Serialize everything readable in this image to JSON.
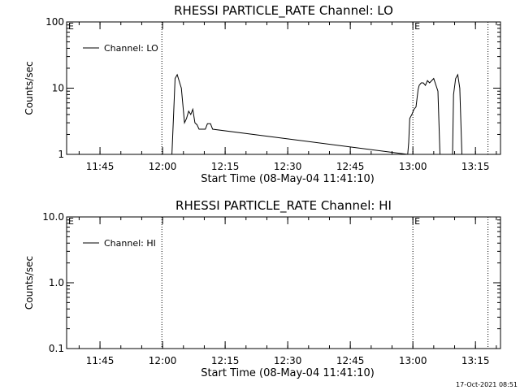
{
  "chart_data": [
    {
      "type": "line",
      "title": "RHESSI PARTICLE_RATE Channel: LO",
      "xlabel": "Start Time (08-May-04 11:41:10)",
      "ylabel": "Counts/sec",
      "yscale": "log",
      "ylim": [
        1,
        100
      ],
      "ytick_labels": [
        "1",
        "10",
        "100"
      ],
      "xlim": [
        "11:37",
        "13:21"
      ],
      "xtick_labels": [
        "11:45",
        "12:00",
        "12:15",
        "12:30",
        "12:45",
        "13:00",
        "13:15"
      ],
      "grid": false,
      "legend_position": "top-left",
      "series": [
        {
          "name": "Channel: LO",
          "x": [
            "12:00:00",
            "12:02:15",
            "12:03:00",
            "12:03:30",
            "12:04:30",
            "12:05:15",
            "12:05:45",
            "12:06:15",
            "12:06:45",
            "12:07:15",
            "12:07:45",
            "12:08:15",
            "12:08:45",
            "12:09:15",
            "12:09:45",
            "12:10:15",
            "12:10:45",
            "12:11:30",
            "12:12:00",
            "12:58:45",
            "12:59:00",
            "12:59:15",
            "12:59:45",
            "13:00:15",
            "13:00:45",
            "13:01:15",
            "13:01:30",
            "13:02:00",
            "13:02:30",
            "13:03:00",
            "13:03:30",
            "13:04:00",
            "13:05:00",
            "13:06:00",
            "13:06:30",
            "13:09:30",
            "13:09:45",
            "13:10:15",
            "13:10:45",
            "13:11:15",
            "13:11:45",
            "13:12:45"
          ],
          "y": [
            1,
            1,
            14,
            16,
            10,
            3,
            3.5,
            4.5,
            4,
            4.8,
            3,
            2.8,
            2.4,
            2.4,
            2.4,
            2.4,
            2.9,
            2.9,
            2.4,
            1,
            1.5,
            3.5,
            4,
            4.8,
            5.2,
            9.5,
            11,
            12,
            12,
            11,
            13,
            12,
            14,
            9,
            1,
            1,
            8,
            14,
            16,
            10,
            1,
            1
          ]
        }
      ],
      "annotations": [
        {
          "text": "E",
          "x": "11:37"
        },
        {
          "text": "E",
          "x": "13:00"
        }
      ]
    },
    {
      "type": "line",
      "title": "RHESSI PARTICLE_RATE Channel: HI",
      "xlabel": "Start Time (08-May-04 11:41:10)",
      "ylabel": "Counts/sec",
      "yscale": "log",
      "ylim": [
        0.1,
        10
      ],
      "ytick_labels": [
        "0.1",
        "1.0",
        "10.0"
      ],
      "xlim": [
        "11:37",
        "13:21"
      ],
      "xtick_labels": [
        "11:45",
        "12:00",
        "12:15",
        "12:30",
        "12:45",
        "13:00",
        "13:15"
      ],
      "grid": false,
      "legend_position": "top-left",
      "series": [
        {
          "name": "Channel: HI",
          "x": [],
          "y": []
        }
      ],
      "annotations": [
        {
          "text": "E",
          "x": "11:37"
        },
        {
          "text": "E",
          "x": "13:00"
        }
      ]
    }
  ],
  "vertical_markers": [
    "11:59:50",
    "13:00:00",
    "13:18:00"
  ],
  "footer": {
    "timestamp": "17-Oct-2021 08:51"
  }
}
